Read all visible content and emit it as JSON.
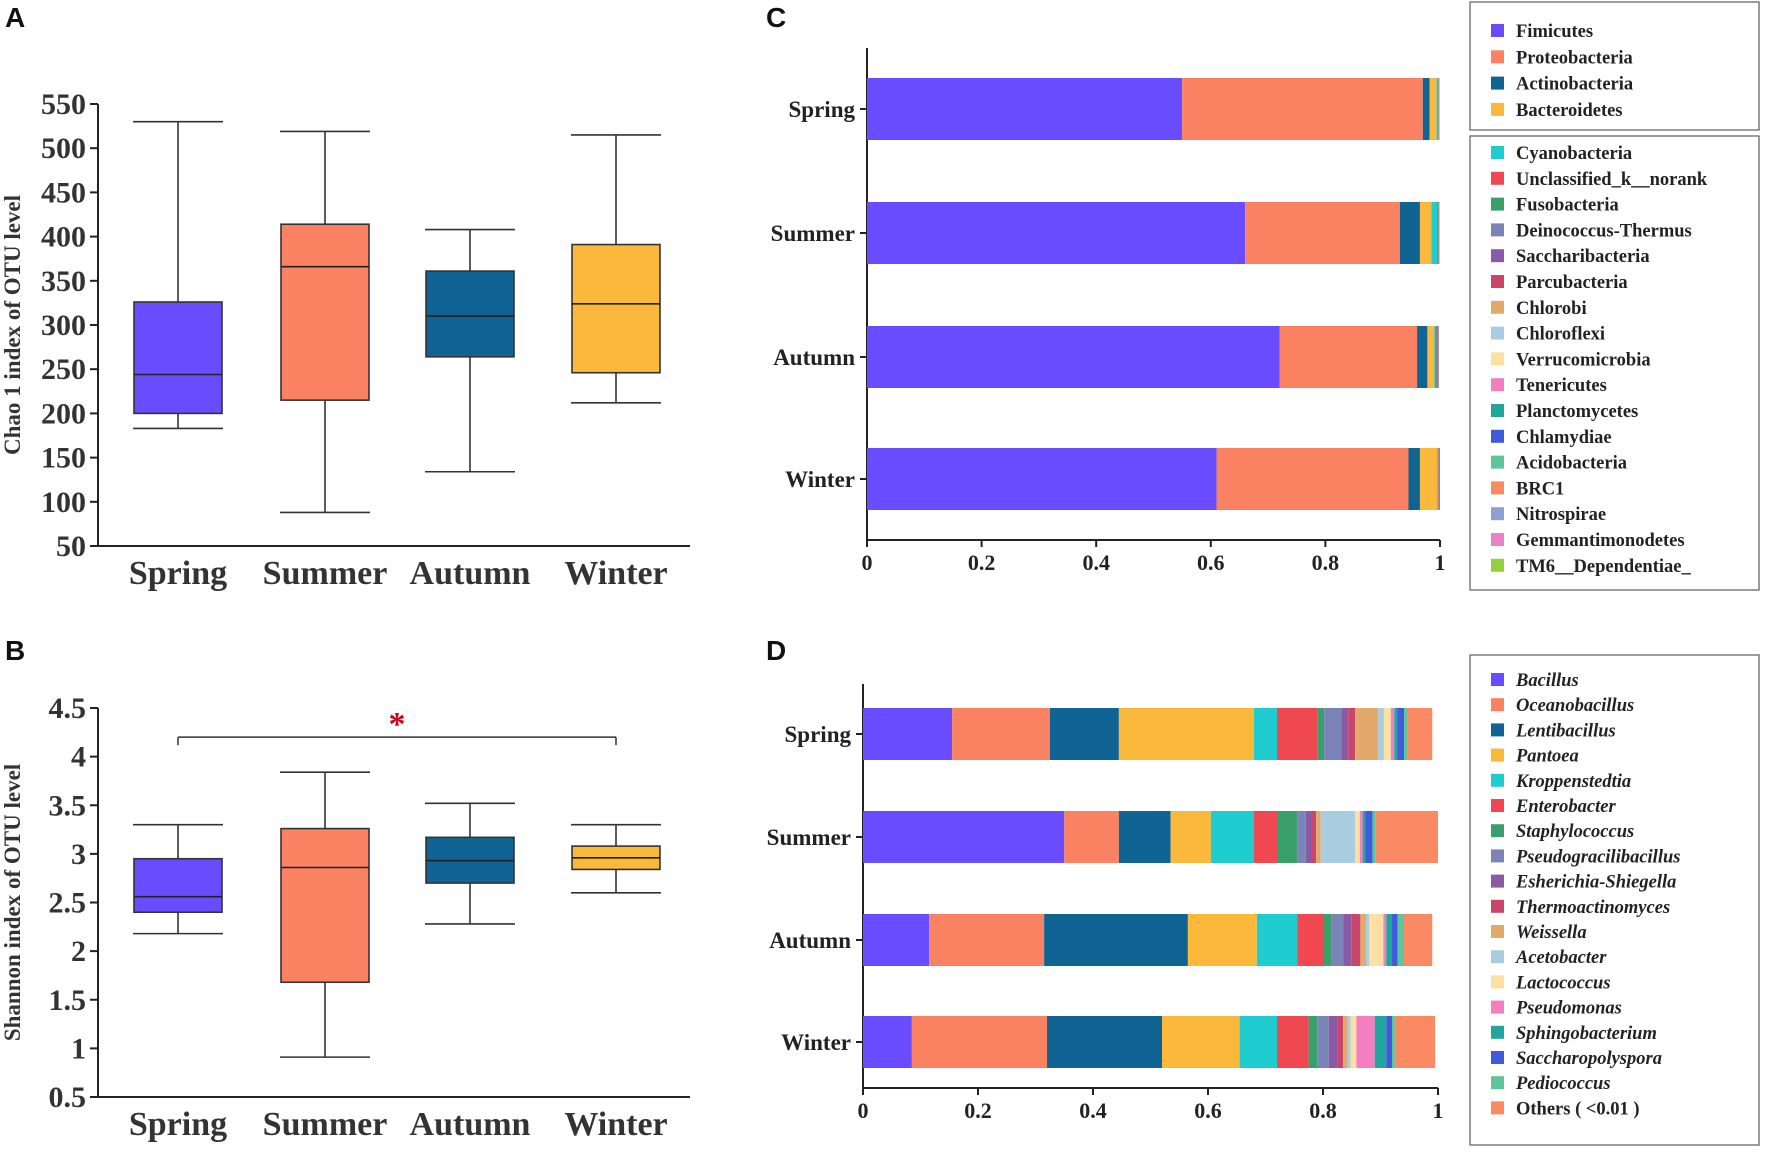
{
  "chart_data": [
    {
      "panel": "A",
      "type": "box",
      "ylabel": "Chao 1 index of OTU level",
      "ylim": [
        50,
        550
      ],
      "yticks": [
        50,
        100,
        150,
        200,
        250,
        300,
        350,
        400,
        450,
        500,
        550
      ],
      "categories": [
        "Spring",
        "Summer",
        "Autumn",
        "Winter"
      ],
      "colors": [
        "#6a4cff",
        "#fa8161",
        "#0f6494",
        "#fbb93c"
      ],
      "boxes": [
        {
          "min": 183,
          "q1": 200,
          "median": 244,
          "q3": 326,
          "max": 530
        },
        {
          "min": 88,
          "q1": 215,
          "median": 366,
          "q3": 414,
          "max": 519
        },
        {
          "min": 134,
          "q1": 264,
          "median": 310,
          "q3": 361,
          "max": 408
        },
        {
          "min": 212,
          "q1": 246,
          "median": 324,
          "q3": 391,
          "max": 515
        }
      ]
    },
    {
      "panel": "B",
      "type": "box",
      "ylabel": "Shannon index of OTU level",
      "ylim": [
        0.5,
        4.5
      ],
      "yticks": [
        0.5,
        1,
        1.5,
        2,
        2.5,
        3,
        3.5,
        4,
        4.5
      ],
      "categories": [
        "Spring",
        "Summer",
        "Autumn",
        "Winter"
      ],
      "colors": [
        "#6a4cff",
        "#fa8161",
        "#0f6494",
        "#fbb93c"
      ],
      "boxes": [
        {
          "min": 2.18,
          "q1": 2.4,
          "median": 2.56,
          "q3": 2.95,
          "max": 3.3
        },
        {
          "min": 0.91,
          "q1": 1.68,
          "median": 2.86,
          "q3": 3.26,
          "max": 3.84
        },
        {
          "min": 2.28,
          "q1": 2.7,
          "median": 2.93,
          "q3": 3.17,
          "max": 3.52
        },
        {
          "min": 2.6,
          "q1": 2.84,
          "median": 2.96,
          "q3": 3.08,
          "max": 3.3
        }
      ],
      "significance": {
        "from": "Spring",
        "to": "Winter",
        "y": 4.2,
        "label": "*"
      }
    },
    {
      "panel": "C",
      "type": "bar",
      "orientation": "horizontal-stacked",
      "categories": [
        "Spring",
        "Summer",
        "Autumn",
        "Winter"
      ],
      "xlim": [
        0,
        1
      ],
      "xticks": [
        "0",
        "0.2",
        "0.4",
        "0.6",
        "0.8",
        "1"
      ],
      "legend_main": [
        "Fimicutes",
        "Proteobacteria",
        "Actinobacteria",
        "Bacteroidetes"
      ],
      "legend_minor": [
        "Cyanobacteria",
        "Unclassified_k__norank",
        "Fusobacteria",
        "Deinococcus-Thermus",
        "Saccharibacteria",
        "Parcubacteria",
        "Chlorobi",
        "Chloroflexi",
        "Verrucomicrobia",
        "Tenericutes",
        "Planctomycetes",
        "Chlamydiae",
        "Acidobacteria",
        "BRC1",
        "Nitrospirae",
        "Gemmantimonodetes",
        "TM6__Dependentiae_"
      ],
      "colors": [
        "#6a4cff",
        "#fa8161",
        "#0f6494",
        "#fbb93c",
        "#1fcccf",
        "#ef4851",
        "#3aa06b",
        "#7a84b8",
        "#8b5aa5",
        "#c9456a",
        "#e3a96b",
        "#a9cde0",
        "#fbe0a1",
        "#f57ec0",
        "#21a59d",
        "#3f5bd9",
        "#5cc59a",
        "#f98a64",
        "#8fa1cf",
        "#e881c9",
        "#93cf3f"
      ],
      "series": [
        {
          "name": "Fimicutes",
          "values": [
            0.55,
            0.66,
            0.72,
            0.61
          ]
        },
        {
          "name": "Proteobacteria",
          "values": [
            0.42,
            0.27,
            0.24,
            0.335
          ]
        },
        {
          "name": "Actinobacteria",
          "values": [
            0.012,
            0.035,
            0.018,
            0.02
          ]
        },
        {
          "name": "Bacteroidetes",
          "values": [
            0.012,
            0.02,
            0.012,
            0.03
          ]
        },
        {
          "name": "Cyanobacteria",
          "values": [
            0.002,
            0.01,
            0.002,
            0.002
          ]
        },
        {
          "name": "Unclassified_k__norank",
          "values": [
            0.001,
            0.002,
            0.002,
            0.001
          ]
        },
        {
          "name": "Fusobacteria",
          "values": [
            0.001,
            0.001,
            0.002,
            0.001
          ]
        },
        {
          "name": "Deinococcus-Thermus",
          "values": [
            0.001,
            0.001,
            0.002,
            0.001
          ]
        }
      ]
    },
    {
      "panel": "D",
      "type": "bar",
      "orientation": "horizontal-stacked",
      "categories": [
        "Spring",
        "Summer",
        "Autumn",
        "Winter"
      ],
      "xlim": [
        0,
        1
      ],
      "xticks": [
        "0",
        "0.2",
        "0.4",
        "0.6",
        "0.8",
        "1"
      ],
      "legend": [
        "Bacillus",
        "Oceanobacillus",
        "Lentibacillus",
        "Pantoea",
        "Kroppenstedtia",
        "Enterobacter",
        "Staphylococcus",
        "Pseudogracilibacillus",
        "Esherichia-Shiegella",
        "Thermoactinomyces",
        "Weissella",
        "Acetobacter",
        "Lactococcus",
        "Pseudomonas",
        "Sphingobacterium",
        "Saccharopolyspora",
        "Pediococcus",
        "Others ( <0.01 )"
      ],
      "italic": [
        true,
        true,
        true,
        true,
        true,
        true,
        true,
        true,
        true,
        true,
        true,
        true,
        true,
        true,
        true,
        true,
        true,
        false
      ],
      "colors": [
        "#6a4cff",
        "#fa8161",
        "#0f6494",
        "#fbb93c",
        "#1fcccf",
        "#ef4851",
        "#3aa06b",
        "#7a84b8",
        "#8b5aa5",
        "#c9456a",
        "#e3a96b",
        "#a9cde0",
        "#fbe0a1",
        "#f57ec0",
        "#21a59d",
        "#3f5bd9",
        "#5cc59a",
        "#f98a64"
      ],
      "series": [
        {
          "name": "Bacillus",
          "values": [
            0.155,
            0.35,
            0.115,
            0.085
          ]
        },
        {
          "name": "Oceanobacillus",
          "values": [
            0.17,
            0.095,
            0.2,
            0.235
          ]
        },
        {
          "name": "Lentibacillus",
          "values": [
            0.12,
            0.09,
            0.25,
            0.2
          ]
        },
        {
          "name": "Pantoea",
          "values": [
            0.235,
            0.07,
            0.12,
            0.135
          ]
        },
        {
          "name": "Kroppenstedtia",
          "values": [
            0.04,
            0.075,
            0.07,
            0.065
          ]
        },
        {
          "name": "Enterobacter",
          "values": [
            0.07,
            0.04,
            0.045,
            0.055
          ]
        },
        {
          "name": "Staphylococcus",
          "values": [
            0.012,
            0.035,
            0.015,
            0.015
          ]
        },
        {
          "name": "Pseudogracilibacillus",
          "values": [
            0.03,
            0.015,
            0.02,
            0.02
          ]
        },
        {
          "name": "Esherichia-Shiegella",
          "values": [
            0.012,
            0.01,
            0.015,
            0.015
          ]
        },
        {
          "name": "Thermoactinomyces",
          "values": [
            0.012,
            0.008,
            0.015,
            0.01
          ]
        },
        {
          "name": "Weissella",
          "values": [
            0.04,
            0.008,
            0.01,
            0.008
          ]
        },
        {
          "name": "Acetobacter",
          "values": [
            0.01,
            0.06,
            0.005,
            0.005
          ]
        },
        {
          "name": "Lactococcus",
          "values": [
            0.012,
            0.008,
            0.025,
            0.01
          ]
        },
        {
          "name": "Pseudomonas",
          "values": [
            0.006,
            0.005,
            0.005,
            0.032
          ]
        },
        {
          "name": "Sphingobacterium",
          "values": [
            0.005,
            0.005,
            0.01,
            0.02
          ]
        },
        {
          "name": "Saccharopolyspora",
          "values": [
            0.012,
            0.012,
            0.01,
            0.01
          ]
        },
        {
          "name": "Pediococcus",
          "values": [
            0.005,
            0.005,
            0.01,
            0.005
          ]
        },
        {
          "name": "Others ( <0.01 )",
          "values": [
            0.044,
            0.144,
            0.05,
            0.07
          ]
        }
      ]
    }
  ]
}
